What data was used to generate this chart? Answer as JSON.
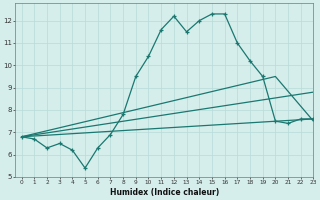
{
  "xlabel": "Humidex (Indice chaleur)",
  "background_color": "#d5eeec",
  "grid_color": "#b8dbd9",
  "line_color": "#1a7870",
  "xlim": [
    -0.5,
    23
  ],
  "ylim": [
    5,
    12.8
  ],
  "yticks": [
    5,
    6,
    7,
    8,
    9,
    10,
    11,
    12
  ],
  "xticks": [
    0,
    1,
    2,
    3,
    4,
    5,
    6,
    7,
    8,
    9,
    10,
    11,
    12,
    13,
    14,
    15,
    16,
    17,
    18,
    19,
    20,
    21,
    22,
    23
  ],
  "main_x": [
    0,
    1,
    2,
    3,
    4,
    5,
    6,
    7,
    8,
    9,
    10,
    11,
    12,
    13,
    14,
    15,
    16,
    17,
    18,
    19,
    20,
    21,
    22,
    23
  ],
  "main_y": [
    6.8,
    6.7,
    6.3,
    6.5,
    6.2,
    5.4,
    6.3,
    6.9,
    7.8,
    9.5,
    10.4,
    11.6,
    12.2,
    11.5,
    12.0,
    12.3,
    12.3,
    11.0,
    10.2,
    9.5,
    7.5,
    7.4,
    7.6,
    7.6
  ],
  "trend1_x": [
    0,
    23
  ],
  "trend1_y": [
    6.8,
    7.6
  ],
  "trend2_x": [
    0,
    23
  ],
  "trend2_y": [
    6.8,
    8.8
  ],
  "trend3_x": [
    0,
    20,
    23
  ],
  "trend3_y": [
    6.8,
    9.5,
    7.5
  ]
}
